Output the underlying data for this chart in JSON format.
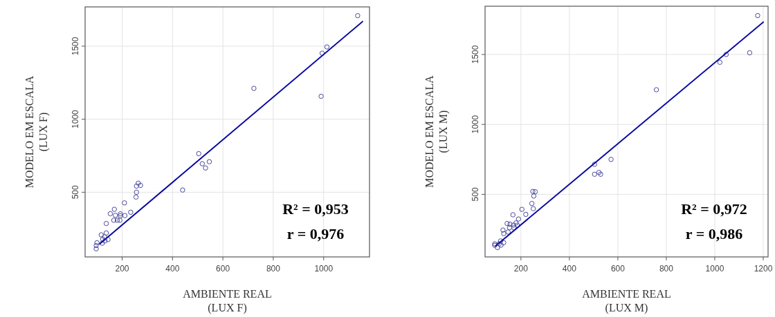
{
  "chart_data": [
    {
      "type": "scatter",
      "xlabel": "AMBIENTE REAL\n(LUX F)",
      "ylabel": "MODELO EM ESCALA\n(LUX F)",
      "xlim": [
        53,
        1182
      ],
      "ylim": [
        57,
        1769
      ],
      "xticks": [
        200,
        400,
        600,
        800,
        1000
      ],
      "yticks": [
        500,
        1000,
        1500
      ],
      "grid": true,
      "marker": "circle",
      "annotations": [
        "R² = 0,953",
        "r = 0,976"
      ],
      "series": [
        {
          "color": "#4a4a9c",
          "x": [
            1135,
            1013,
            994,
            723,
            990,
            504,
            518,
            546,
            531,
            440,
            264,
            257,
            273,
            257,
            255,
            209,
            234,
            153,
            169,
            173,
            193,
            193,
            211,
            167,
            181,
            191,
            137,
            137,
            117,
            130,
            123,
            144,
            132,
            121,
            100,
            97,
            97
          ],
          "values": [
            1709,
            1495,
            1452,
            1211,
            1157,
            764,
            695,
            709,
            666,
            515,
            562,
            542,
            547,
            500,
            467,
            427,
            363,
            353,
            383,
            342,
            352,
            339,
            340,
            308,
            308,
            308,
            286,
            221,
            208,
            195,
            179,
            176,
            167,
            151,
            154,
            135,
            113
          ]
        },
        {
          "type": "line",
          "color": "#0a0aa0",
          "marker": "none",
          "x": [
            109,
            1156
          ],
          "values": [
            143,
            1671
          ]
        }
      ]
    },
    {
      "type": "scatter",
      "xlabel": "AMBIENTE REAL\n(LUX M)",
      "ylabel": "MODELO EM ESCALA\n(LUX M)",
      "xlim": [
        52,
        1220
      ],
      "ylim": [
        53,
        1845
      ],
      "xticks": [
        200,
        400,
        600,
        800,
        1000,
        1200
      ],
      "yticks": [
        500,
        1000,
        1500
      ],
      "grid": true,
      "marker": "circle",
      "annotations": [
        "R² = 0,972",
        "r = 0,986"
      ],
      "series": [
        {
          "color": "#4a4a9c",
          "x": [
            1177,
            1144,
            1047,
            1021,
            759,
            572,
            504,
            504,
            522,
            529,
            249,
            259,
            253,
            245,
            251,
            204,
            220,
            167,
            190,
            143,
            155,
            169,
            180,
            185,
            153,
            171,
            147,
            126,
            129,
            116,
            129,
            110,
            92,
            92,
            103,
            118
          ],
          "values": [
            1778,
            1512,
            1500,
            1444,
            1248,
            750,
            715,
            644,
            657,
            644,
            521,
            519,
            488,
            435,
            398,
            393,
            357,
            354,
            324,
            292,
            287,
            280,
            296,
            280,
            262,
            262,
            231,
            245,
            220,
            167,
            155,
            146,
            146,
            136,
            120,
            137
          ]
        },
        {
          "type": "line",
          "color": "#0a0aa0",
          "marker": "none",
          "x": [
            94,
            1202
          ],
          "values": [
            129,
            1734
          ]
        }
      ]
    }
  ]
}
